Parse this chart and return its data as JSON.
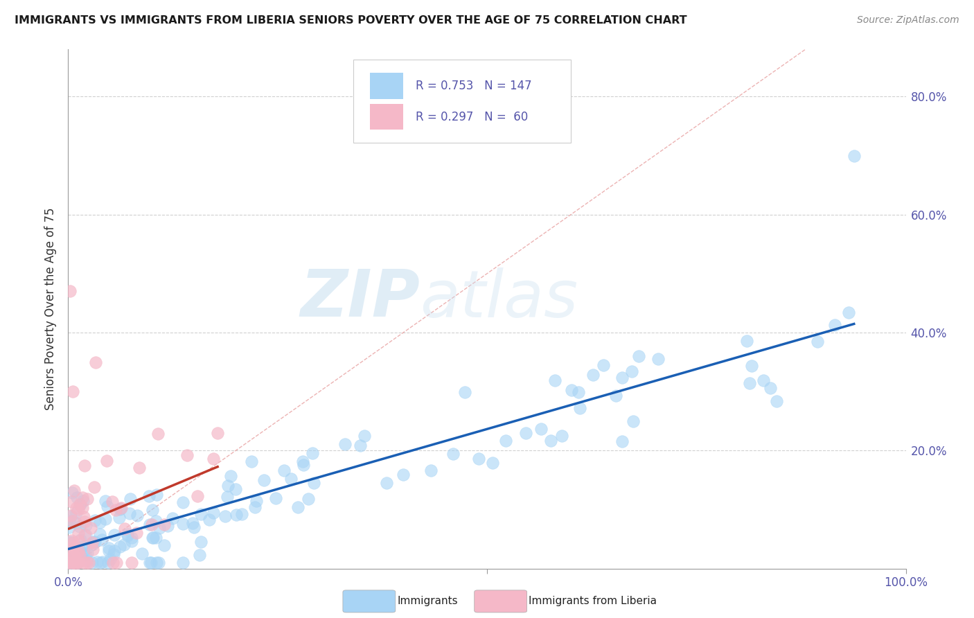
{
  "title": "IMMIGRANTS VS IMMIGRANTS FROM LIBERIA SENIORS POVERTY OVER THE AGE OF 75 CORRELATION CHART",
  "source": "Source: ZipAtlas.com",
  "ylabel": "Seniors Poverty Over the Age of 75",
  "xlim": [
    0.0,
    1.0
  ],
  "ylim": [
    0.0,
    0.88
  ],
  "xtick_positions": [
    0.0,
    0.5,
    1.0
  ],
  "xticklabels": [
    "0.0%",
    "",
    "100.0%"
  ],
  "ytick_positions": [
    0.2,
    0.4,
    0.6,
    0.8
  ],
  "yticklabels": [
    "20.0%",
    "40.0%",
    "60.0%",
    "80.0%"
  ],
  "blue_color": "#a8d4f5",
  "pink_color": "#f5b8c8",
  "blue_line_color": "#1a5fb4",
  "pink_line_color": "#c0392b",
  "diag_line_color": "#e8c0c0",
  "R_blue": 0.753,
  "N_blue": 147,
  "R_pink": 0.297,
  "N_pink": 60,
  "legend_label_blue": "Immigrants",
  "legend_label_pink": "Immigrants from Liberia",
  "watermark_zip": "ZIP",
  "watermark_atlas": "atlas",
  "background_color": "#ffffff",
  "grid_color": "#d0d0d0",
  "title_color": "#1a1a1a",
  "label_color": "#4a4a8a",
  "tick_color": "#5555aa"
}
